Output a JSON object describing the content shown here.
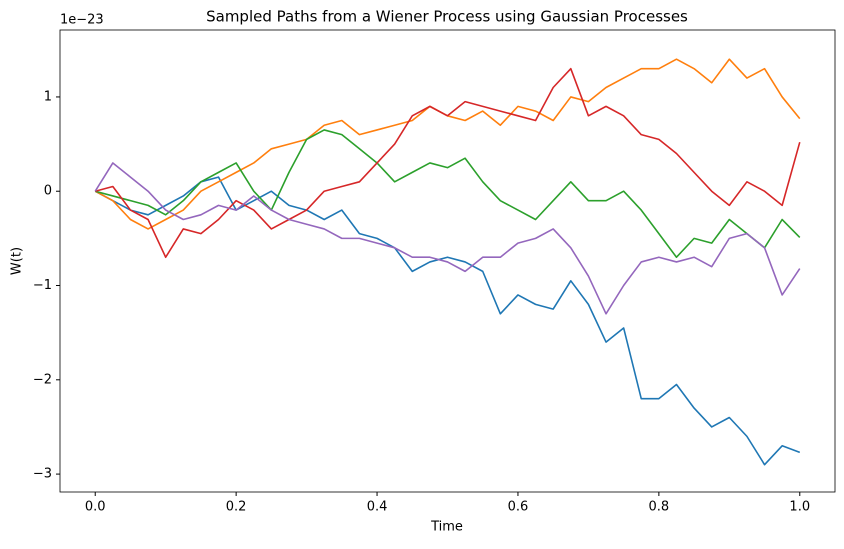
{
  "chart_data": {
    "type": "line",
    "title": "Sampled Paths from a Wiener Process using Gaussian Processes",
    "x_label": "Time",
    "y_label": "W(t)",
    "y_offset_label": "1e−23",
    "x": [
      0,
      0.025,
      0.05,
      0.075,
      0.1,
      0.125,
      0.15,
      0.175,
      0.2,
      0.225,
      0.25,
      0.275,
      0.3,
      0.325,
      0.35,
      0.375,
      0.4,
      0.425,
      0.45,
      0.475,
      0.5,
      0.525,
      0.55,
      0.575,
      0.6,
      0.625,
      0.65,
      0.675,
      0.7,
      0.725,
      0.75,
      0.775,
      0.8,
      0.825,
      0.85,
      0.875,
      0.9,
      0.925,
      0.95,
      0.975,
      1
    ],
    "series": [
      {
        "color": "#1f77b4",
        "values": [
          0,
          -0.1,
          -0.2,
          -0.25,
          -0.15,
          -0.05,
          0.1,
          0.15,
          -0.2,
          -0.1,
          0.0,
          -0.15,
          -0.2,
          -0.3,
          -0.2,
          -0.45,
          -0.5,
          -0.6,
          -0.85,
          -0.75,
          -0.7,
          -0.75,
          -0.85,
          -1.3,
          -1.1,
          -1.2,
          -1.25,
          -0.95,
          -1.2,
          -1.6,
          -1.45,
          -2.2,
          -2.2,
          -2.05,
          -2.3,
          -2.5,
          -2.4,
          -2.6,
          -2.9,
          -2.7,
          -2.77
        ]
      },
      {
        "color": "#ff7f0e",
        "values": [
          0,
          -0.1,
          -0.3,
          -0.4,
          -0.3,
          -0.2,
          0,
          0.1,
          0.2,
          0.3,
          0.45,
          0.5,
          0.55,
          0.7,
          0.75,
          0.6,
          0.65,
          0.7,
          0.75,
          0.9,
          0.8,
          0.75,
          0.85,
          0.7,
          0.9,
          0.85,
          0.75,
          1.0,
          0.95,
          1.1,
          1.2,
          1.3,
          1.3,
          1.4,
          1.3,
          1.15,
          1.4,
          1.2,
          1.3,
          1.0,
          0.77
        ]
      },
      {
        "color": "#2ca02c",
        "values": [
          0,
          -0.05,
          -0.1,
          -0.15,
          -0.25,
          -0.1,
          0.1,
          0.2,
          0.3,
          0.0,
          -0.2,
          0.2,
          0.55,
          0.65,
          0.6,
          0.45,
          0.3,
          0.1,
          0.2,
          0.3,
          0.25,
          0.35,
          0.1,
          -0.1,
          -0.2,
          -0.3,
          -0.1,
          0.1,
          -0.1,
          -0.1,
          0.0,
          -0.2,
          -0.45,
          -0.7,
          -0.5,
          -0.55,
          -0.3,
          -0.45,
          -0.6,
          -0.3,
          -0.49
        ]
      },
      {
        "color": "#d62728",
        "values": [
          0,
          0.05,
          -0.2,
          -0.3,
          -0.7,
          -0.4,
          -0.45,
          -0.3,
          -0.1,
          -0.2,
          -0.4,
          -0.3,
          -0.2,
          0.0,
          0.05,
          0.1,
          0.3,
          0.5,
          0.8,
          0.9,
          0.8,
          0.95,
          0.9,
          0.85,
          0.8,
          0.75,
          1.1,
          1.3,
          0.8,
          0.9,
          0.8,
          0.6,
          0.55,
          0.4,
          0.2,
          0.0,
          -0.15,
          0.1,
          0.0,
          -0.15,
          0.52
        ]
      },
      {
        "color": "#9467bd",
        "values": [
          0,
          0.3,
          0.15,
          0.0,
          -0.2,
          -0.3,
          -0.25,
          -0.15,
          -0.2,
          -0.05,
          -0.2,
          -0.3,
          -0.35,
          -0.4,
          -0.5,
          -0.5,
          -0.55,
          -0.6,
          -0.7,
          -0.7,
          -0.75,
          -0.85,
          -0.7,
          -0.7,
          -0.55,
          -0.5,
          -0.4,
          -0.6,
          -0.9,
          -1.3,
          -1.0,
          -0.75,
          -0.7,
          -0.75,
          -0.7,
          -0.8,
          -0.5,
          -0.45,
          -0.6,
          -1.1,
          -0.82
        ]
      }
    ],
    "xlim": [
      -0.05,
      1.05
    ],
    "xticks": [
      {
        "value": 0,
        "label": "0.0"
      },
      {
        "value": 0.2,
        "label": "0.2"
      },
      {
        "value": 0.4,
        "label": "0.4"
      },
      {
        "value": 0.6,
        "label": "0.6"
      },
      {
        "value": 0.8,
        "label": "0.8"
      },
      {
        "value": 1,
        "label": "1.0"
      }
    ],
    "ylim": [
      -3.19,
      1.71
    ],
    "yticks": [
      {
        "value": -3,
        "label": "−3"
      },
      {
        "value": -2,
        "label": "−2"
      },
      {
        "value": -1,
        "label": "−1"
      },
      0,
      1
    ],
    "grid": false
  }
}
